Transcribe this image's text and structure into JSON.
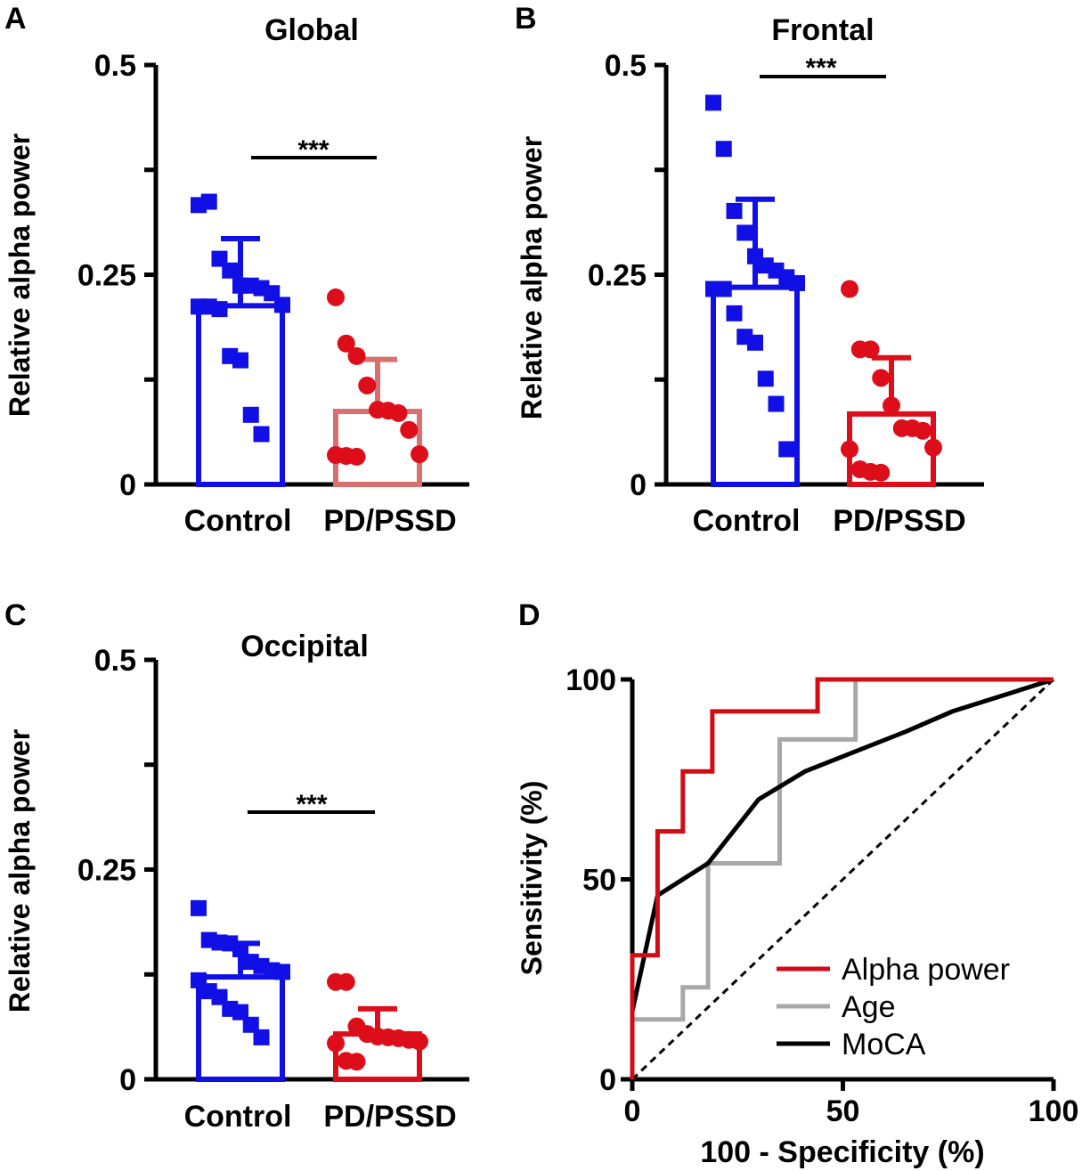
{
  "chart_data": [
    {
      "panel": "A",
      "type": "bar",
      "title": "Global",
      "ylabel": "Relative alpha power",
      "ylim": [
        0,
        0.5
      ],
      "yticks": [
        0,
        0.25,
        0.5
      ],
      "ytick_labels": [
        "0",
        "0.25",
        "0.5"
      ],
      "categories": [
        "Control",
        "PD/PSSD"
      ],
      "means": [
        0.213,
        0.087
      ],
      "sd": [
        0.08,
        0.062
      ],
      "colors": [
        "#1010e6",
        "#d87070"
      ],
      "significance": "***",
      "points": [
        [
          0.333,
          0.337,
          0.269,
          0.255,
          0.237,
          0.237,
          0.234,
          0.228,
          0.214,
          0.212,
          0.212,
          0.209,
          0.153,
          0.148,
          0.083,
          0.06
        ],
        [
          0.223,
          0.168,
          0.153,
          0.118,
          0.089,
          0.088,
          0.085,
          0.065,
          0.036,
          0.035,
          0.034,
          0.033
        ]
      ]
    },
    {
      "panel": "B",
      "type": "bar",
      "title": "Frontal",
      "ylabel": "Relative alpha power",
      "ylim": [
        0,
        0.5
      ],
      "yticks": [
        0,
        0.25,
        0.5
      ],
      "ytick_labels": [
        "0",
        "0.25",
        "0.5"
      ],
      "categories": [
        "Control",
        "PD/PSSD"
      ],
      "means": [
        0.235,
        0.084
      ],
      "sd": [
        0.105,
        0.067
      ],
      "colors": [
        "#1010e6",
        "#dd0e1a"
      ],
      "significance": "***",
      "points": [
        [
          0.455,
          0.4,
          0.326,
          0.3,
          0.272,
          0.261,
          0.255,
          0.247,
          0.24,
          0.233,
          0.233,
          0.204,
          0.176,
          0.169,
          0.126,
          0.096,
          0.042
        ],
        [
          0.233,
          0.161,
          0.161,
          0.127,
          0.094,
          0.067,
          0.067,
          0.064,
          0.044,
          0.042,
          0.018,
          0.015,
          0.014
        ]
      ]
    },
    {
      "panel": "C",
      "type": "bar",
      "title": "Occipital",
      "ylabel": "Relative alpha power",
      "ylim": [
        0,
        0.5
      ],
      "yticks": [
        0,
        0.25,
        0.5
      ],
      "ytick_labels": [
        "0",
        "0.25",
        "0.5"
      ],
      "categories": [
        "Control",
        "PD/PSSD"
      ],
      "means": [
        0.122,
        0.054
      ],
      "sd": [
        0.04,
        0.03
      ],
      "colors": [
        "#1010e6",
        "#dd0e1a"
      ],
      "significance": "***",
      "points": [
        [
          0.204,
          0.166,
          0.163,
          0.162,
          0.155,
          0.14,
          0.135,
          0.13,
          0.128,
          0.118,
          0.105,
          0.098,
          0.084,
          0.08,
          0.065,
          0.05
        ],
        [
          0.116,
          0.116,
          0.063,
          0.054,
          0.051,
          0.05,
          0.049,
          0.047,
          0.045,
          0.043,
          0.022,
          0.021
        ]
      ]
    },
    {
      "panel": "D",
      "type": "line",
      "xlabel": "100 - Specificity (%)",
      "ylabel": "Sensitivity (%)",
      "xlim": [
        0,
        100
      ],
      "ylim": [
        0,
        100
      ],
      "xticks": [
        0,
        50,
        100
      ],
      "xtick_labels": [
        "0",
        "50",
        "100"
      ],
      "yticks": [
        0,
        50,
        100
      ],
      "ytick_labels": [
        "0",
        "50",
        "100"
      ],
      "reference_line": [
        [
          0,
          0
        ],
        [
          100,
          100
        ]
      ],
      "series": [
        {
          "name": "Alpha power",
          "color": "#d10c14",
          "points": [
            [
              0,
              0
            ],
            [
              0,
              31
            ],
            [
              6,
              31
            ],
            [
              6,
              62
            ],
            [
              12,
              62
            ],
            [
              12,
              77
            ],
            [
              19,
              77
            ],
            [
              19,
              92
            ],
            [
              44,
              92
            ],
            [
              44,
              100
            ],
            [
              100,
              100
            ]
          ]
        },
        {
          "name": "Age",
          "color": "#a8a8a8",
          "points": [
            [
              0,
              15
            ],
            [
              12,
              15
            ],
            [
              12,
              23
            ],
            [
              18,
              23
            ],
            [
              18,
              54
            ],
            [
              35,
              54
            ],
            [
              35,
              85
            ],
            [
              53,
              85
            ],
            [
              53,
              100
            ],
            [
              100,
              100
            ]
          ]
        },
        {
          "name": "MoCA",
          "color": "#000000",
          "points": [
            [
              0,
              17
            ],
            [
              6,
              46
            ],
            [
              18,
              54
            ],
            [
              30,
              70
            ],
            [
              41,
              77
            ],
            [
              53,
              82
            ],
            [
              65,
              87
            ],
            [
              76,
              92
            ],
            [
              100,
              100
            ]
          ]
        }
      ]
    }
  ],
  "panel_labels": [
    "A",
    "B",
    "C",
    "D"
  ]
}
